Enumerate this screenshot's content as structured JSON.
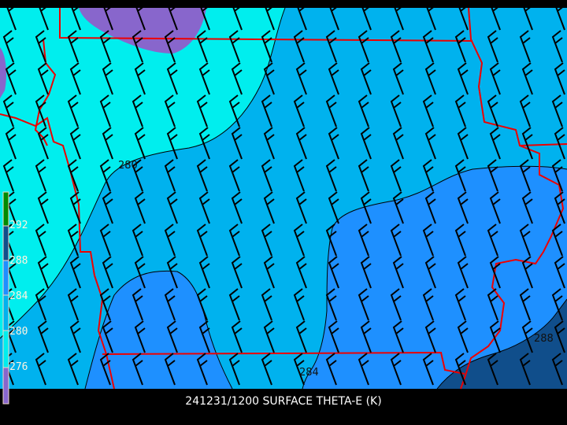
{
  "title": "241231/1200 SURFACE THETA-E (K)",
  "colors": {
    "below_276": "#8866cc",
    "276_280": "#00eeee",
    "280_284": "#00b2ee",
    "284_288": "#1e90ff",
    "288_292": "#104e8b",
    "above_292": "#008b00",
    "state_borders": "#ee0000",
    "wind_barbs": "#000000",
    "background": "#000000"
  },
  "colorbar": {
    "labels": [
      "292",
      "288",
      "284",
      "280",
      "276"
    ]
  },
  "contour_labels": [
    "280",
    "284",
    "288"
  ],
  "wind_barb_icon": "wind-barb-icon"
}
